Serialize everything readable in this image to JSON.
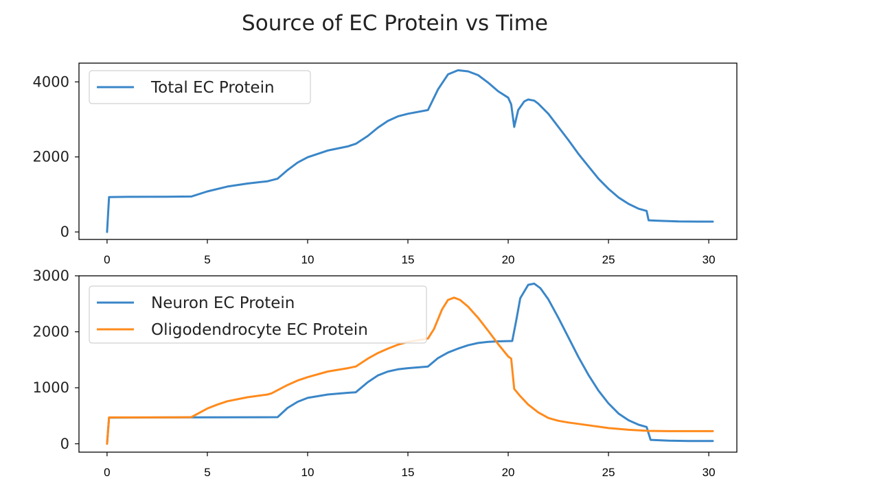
{
  "figure": {
    "title": "Source of EC Protein vs Time"
  },
  "chart_data": [
    {
      "type": "line",
      "title": "",
      "xlabel": "",
      "ylabel": "",
      "xlim": [
        -1.4,
        31.4
      ],
      "ylim": [
        -200,
        4500
      ],
      "xticks": [
        0,
        5,
        10,
        15,
        20,
        25,
        30
      ],
      "yticks": [
        0,
        2000,
        4000
      ],
      "xtick_labels": [
        "0",
        "5",
        "10",
        "15",
        "20",
        "25",
        "30"
      ],
      "ytick_labels": [
        "0",
        "2000",
        "4000"
      ],
      "legend_position": "upper-left",
      "grid": false,
      "series": [
        {
          "name": "Total EC Protein",
          "color": "#3a86c8",
          "points": [
            [
              0,
              0
            ],
            [
              0.1,
              930
            ],
            [
              1,
              935
            ],
            [
              3,
              940
            ],
            [
              4.2,
              945
            ],
            [
              5,
              1080
            ],
            [
              6,
              1210
            ],
            [
              7,
              1290
            ],
            [
              8,
              1350
            ],
            [
              8.5,
              1420
            ],
            [
              9,
              1650
            ],
            [
              9.5,
              1850
            ],
            [
              10,
              1990
            ],
            [
              11,
              2170
            ],
            [
              12,
              2280
            ],
            [
              12.4,
              2350
            ],
            [
              13,
              2560
            ],
            [
              13.5,
              2780
            ],
            [
              14,
              2960
            ],
            [
              14.5,
              3080
            ],
            [
              15,
              3150
            ],
            [
              16,
              3250
            ],
            [
              16.5,
              3800
            ],
            [
              17,
              4200
            ],
            [
              17.5,
              4310
            ],
            [
              18,
              4280
            ],
            [
              18.5,
              4180
            ],
            [
              19,
              3980
            ],
            [
              19.5,
              3750
            ],
            [
              20,
              3580
            ],
            [
              20.15,
              3400
            ],
            [
              20.3,
              2800
            ],
            [
              20.5,
              3250
            ],
            [
              20.8,
              3480
            ],
            [
              21,
              3530
            ],
            [
              21.3,
              3500
            ],
            [
              21.5,
              3420
            ],
            [
              22,
              3150
            ],
            [
              22.5,
              2800
            ],
            [
              23,
              2450
            ],
            [
              23.5,
              2080
            ],
            [
              24,
              1750
            ],
            [
              24.5,
              1420
            ],
            [
              25,
              1150
            ],
            [
              25.5,
              920
            ],
            [
              26,
              750
            ],
            [
              26.5,
              620
            ],
            [
              26.9,
              560
            ],
            [
              27,
              310
            ],
            [
              27.5,
              300
            ],
            [
              28,
              290
            ],
            [
              28.5,
              280
            ],
            [
              29,
              278
            ],
            [
              30,
              275
            ],
            [
              30.2,
              275
            ]
          ]
        }
      ]
    },
    {
      "type": "line",
      "title": "",
      "xlabel": "",
      "ylabel": "",
      "xlim": [
        -1.4,
        31.4
      ],
      "ylim": [
        -150,
        3000
      ],
      "xticks": [
        0,
        5,
        10,
        15,
        20,
        25,
        30
      ],
      "yticks": [
        0,
        1000,
        2000,
        3000
      ],
      "xtick_labels": [
        "0",
        "5",
        "10",
        "15",
        "20",
        "25",
        "30"
      ],
      "ytick_labels": [
        "0",
        "1000",
        "2000",
        "3000"
      ],
      "legend_position": "upper-left",
      "grid": false,
      "series": [
        {
          "name": "Neuron EC Protein",
          "color": "#3a86c8",
          "points": [
            [
              0,
              0
            ],
            [
              0.1,
              465
            ],
            [
              1,
              468
            ],
            [
              3,
              470
            ],
            [
              5,
              472
            ],
            [
              8.5,
              475
            ],
            [
              9,
              640
            ],
            [
              9.5,
              750
            ],
            [
              10,
              820
            ],
            [
              11,
              880
            ],
            [
              12,
              910
            ],
            [
              12.4,
              920
            ],
            [
              13,
              1100
            ],
            [
              13.5,
              1220
            ],
            [
              14,
              1290
            ],
            [
              14.5,
              1330
            ],
            [
              15,
              1350
            ],
            [
              16,
              1380
            ],
            [
              16.5,
              1530
            ],
            [
              17,
              1630
            ],
            [
              17.5,
              1700
            ],
            [
              18,
              1760
            ],
            [
              18.5,
              1800
            ],
            [
              19,
              1820
            ],
            [
              19.5,
              1830
            ],
            [
              20.2,
              1835
            ],
            [
              20.4,
              2200
            ],
            [
              20.6,
              2600
            ],
            [
              21,
              2840
            ],
            [
              21.3,
              2860
            ],
            [
              21.6,
              2780
            ],
            [
              22,
              2580
            ],
            [
              22.5,
              2250
            ],
            [
              23,
              1900
            ],
            [
              23.5,
              1550
            ],
            [
              24,
              1230
            ],
            [
              24.5,
              950
            ],
            [
              25,
              720
            ],
            [
              25.5,
              540
            ],
            [
              26,
              420
            ],
            [
              26.5,
              340
            ],
            [
              26.9,
              300
            ],
            [
              27.1,
              70
            ],
            [
              28,
              55
            ],
            [
              29,
              50
            ],
            [
              30.2,
              48
            ]
          ]
        },
        {
          "name": "Oligodendrocyte EC Protein",
          "color": "#ff8a1c",
          "points": [
            [
              0,
              0
            ],
            [
              0.1,
              470
            ],
            [
              1,
              470
            ],
            [
              3,
              472
            ],
            [
              4.2,
              475
            ],
            [
              5,
              630
            ],
            [
              5.5,
              700
            ],
            [
              6,
              760
            ],
            [
              7,
              830
            ],
            [
              8,
              880
            ],
            [
              8.2,
              900
            ],
            [
              9,
              1050
            ],
            [
              9.5,
              1130
            ],
            [
              10,
              1190
            ],
            [
              11,
              1290
            ],
            [
              12,
              1350
            ],
            [
              12.4,
              1380
            ],
            [
              13,
              1520
            ],
            [
              13.5,
              1620
            ],
            [
              14,
              1700
            ],
            [
              14.5,
              1770
            ],
            [
              15,
              1820
            ],
            [
              16,
              1880
            ],
            [
              16.3,
              2050
            ],
            [
              16.7,
              2400
            ],
            [
              17,
              2570
            ],
            [
              17.3,
              2610
            ],
            [
              17.6,
              2570
            ],
            [
              18,
              2450
            ],
            [
              18.5,
              2250
            ],
            [
              19,
              2020
            ],
            [
              19.5,
              1780
            ],
            [
              20,
              1560
            ],
            [
              20.15,
              1520
            ],
            [
              20.3,
              980
            ],
            [
              20.6,
              850
            ],
            [
              21,
              700
            ],
            [
              21.5,
              560
            ],
            [
              22,
              460
            ],
            [
              22.5,
              410
            ],
            [
              23,
              380
            ],
            [
              24,
              330
            ],
            [
              25,
              280
            ],
            [
              26,
              250
            ],
            [
              27,
              230
            ],
            [
              28,
              225
            ],
            [
              30.2,
              225
            ]
          ]
        }
      ]
    }
  ]
}
